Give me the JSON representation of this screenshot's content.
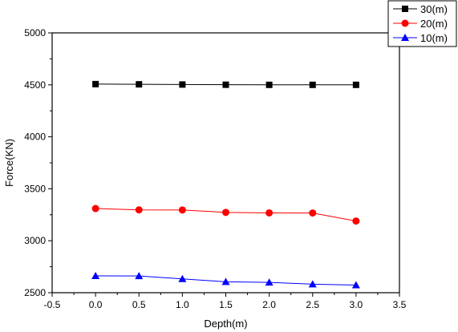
{
  "chart_data": {
    "type": "line",
    "title": "",
    "xlabel": "Depth(m)",
    "ylabel": "Force(KN)",
    "xlim": [
      -0.5,
      3.5
    ],
    "ylim": [
      2500,
      5000
    ],
    "x_ticks": [
      -0.5,
      0.0,
      0.5,
      1.0,
      1.5,
      2.0,
      2.5,
      3.0,
      3.5
    ],
    "x_tick_labels": [
      "-0.5",
      "0.0",
      "0.5",
      "1.0",
      "1.5",
      "2.0",
      "2.5",
      "3.0",
      "3.5"
    ],
    "y_ticks": [
      2500,
      3000,
      3500,
      4000,
      4500,
      5000
    ],
    "y_tick_labels": [
      "2500",
      "3000",
      "3500",
      "4000",
      "4500",
      "5000"
    ],
    "grid": false,
    "legend_position": "top-right, outside plot",
    "x": [
      0.0,
      0.5,
      1.0,
      1.5,
      2.0,
      2.5,
      3.0
    ],
    "series": [
      {
        "name": "30(m)",
        "color": "#000000",
        "marker": "square",
        "values": [
          4507,
          4505,
          4503,
          4501,
          4500,
          4500,
          4500
        ]
      },
      {
        "name": "20(m)",
        "color": "#ff0000",
        "marker": "circle",
        "values": [
          3310,
          3297,
          3296,
          3273,
          3268,
          3267,
          3190
        ]
      },
      {
        "name": "10(m)",
        "color": "#0000ff",
        "marker": "triangle",
        "values": [
          2662,
          2661,
          2633,
          2605,
          2599,
          2582,
          2573
        ]
      }
    ]
  }
}
